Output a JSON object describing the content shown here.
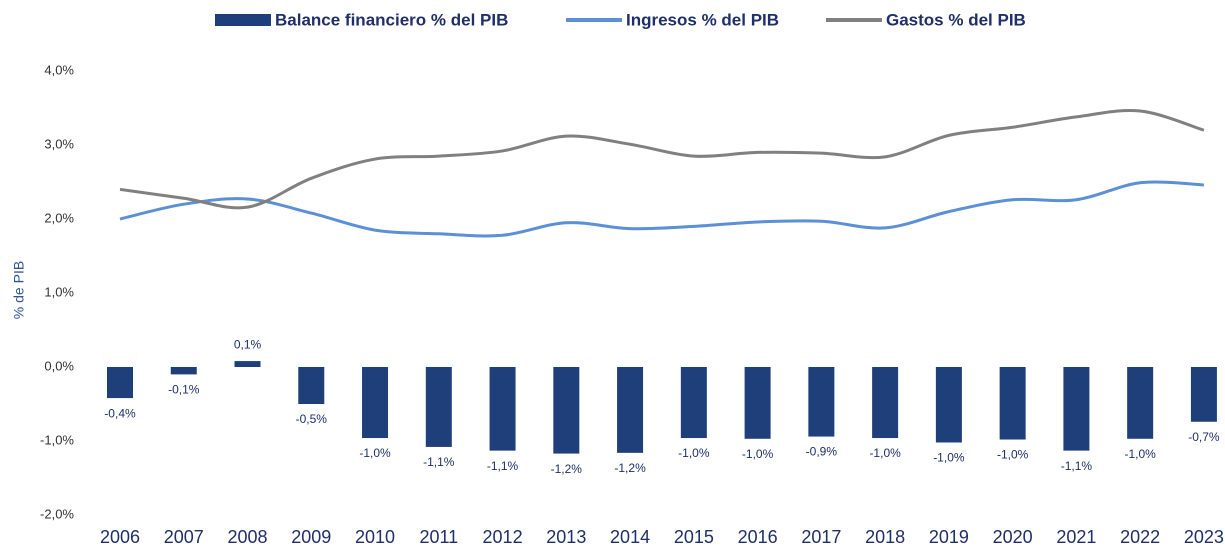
{
  "chart_data": {
    "type": "bar",
    "ylabel": "% de PIB",
    "categories": [
      "2006",
      "2007",
      "2008",
      "2009",
      "2010",
      "2011",
      "2012",
      "2013",
      "2014",
      "2015",
      "2016",
      "2017",
      "2018",
      "2019",
      "2020",
      "2021",
      "2022",
      "2023"
    ],
    "ylim": [
      -2,
      4
    ],
    "yticks": [
      {
        "value": -2,
        "label": "-2,0%"
      },
      {
        "value": -1,
        "label": "-1,0%"
      },
      {
        "value": 0,
        "label": "0,0%"
      },
      {
        "value": 1,
        "label": "1,0%"
      },
      {
        "value": 2,
        "label": "2,0%"
      },
      {
        "value": 3,
        "label": "3,0%"
      },
      {
        "value": 4,
        "label": "4,0%"
      }
    ],
    "series": [
      {
        "name": "Balance financiero % del PIB",
        "type": "bar",
        "color": "#1f3f7a",
        "values": [
          -0.42,
          -0.1,
          0.08,
          -0.5,
          -0.96,
          -1.08,
          -1.13,
          -1.17,
          -1.16,
          -0.96,
          -0.97,
          -0.94,
          -0.96,
          -1.02,
          -0.98,
          -1.13,
          -0.97,
          -0.74
        ],
        "value_labels": [
          "-0,4%",
          "-0,1%",
          "0,1%",
          "-0,5%",
          "-1,0%",
          "-1,1%",
          "-1,1%",
          "-1,2%",
          "-1,2%",
          "-1,0%",
          "-1,0%",
          "-0,9%",
          "-1,0%",
          "-1,0%",
          "-1,0%",
          "-1,1%",
          "-1,0%",
          "-0,7%"
        ]
      },
      {
        "name": "Ingresos % del PIB",
        "type": "line",
        "color": "#5b8fd6",
        "values": [
          2.0,
          2.2,
          2.27,
          2.08,
          1.85,
          1.8,
          1.78,
          1.95,
          1.87,
          1.9,
          1.96,
          1.97,
          1.88,
          2.1,
          2.26,
          2.26,
          2.49,
          2.46
        ]
      },
      {
        "name": "Gastos % del PIB",
        "type": "line",
        "color": "#808080",
        "values": [
          2.4,
          2.28,
          2.16,
          2.55,
          2.81,
          2.85,
          2.92,
          3.12,
          3.01,
          2.85,
          2.9,
          2.89,
          2.84,
          3.13,
          3.24,
          3.38,
          3.46,
          3.2
        ]
      }
    ]
  }
}
